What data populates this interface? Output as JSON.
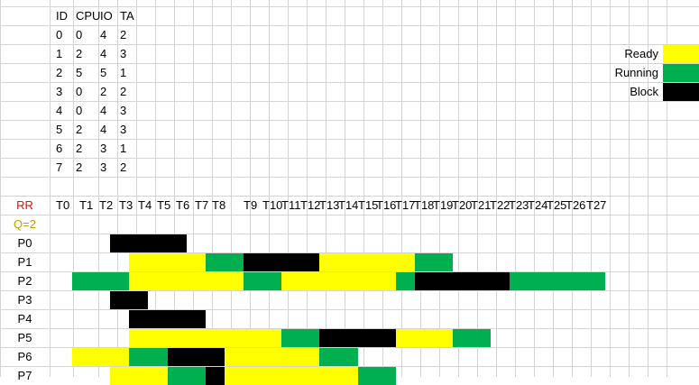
{
  "colors": {
    "ready": "#FFFF00",
    "running": "#00B050",
    "block": "#000000",
    "grid": "#D4D4D4",
    "rr_label": "#FF0000",
    "quantum_label": "#C0A000"
  },
  "process_table": {
    "headers": [
      "ID",
      "CPU",
      "IO",
      "TA"
    ],
    "rows": [
      [
        "0",
        "0",
        "4",
        "2"
      ],
      [
        "1",
        "2",
        "4",
        "3"
      ],
      [
        "2",
        "5",
        "5",
        "1"
      ],
      [
        "3",
        "0",
        "2",
        "2"
      ],
      [
        "4",
        "0",
        "4",
        "3"
      ],
      [
        "5",
        "2",
        "4",
        "3"
      ],
      [
        "6",
        "2",
        "3",
        "1"
      ],
      [
        "7",
        "2",
        "3",
        "2"
      ]
    ]
  },
  "legend": [
    {
      "label": "Ready",
      "state": "ready"
    },
    {
      "label": "Running",
      "state": "running"
    },
    {
      "label": "Block",
      "state": "block"
    }
  ],
  "gantt": {
    "algorithm_label": "RR",
    "quantum_label": "Q=2",
    "time_labels": [
      "T0",
      "T1",
      "T2",
      "T3",
      "T4",
      "T5",
      "T6",
      "T7",
      "T8",
      "T9",
      "T10",
      "T11",
      "T12",
      "T13",
      "T14",
      "T15",
      "T16",
      "T17",
      "T18",
      "T19",
      "T20",
      "T21",
      "T22",
      "T23",
      "T24",
      "T25",
      "T26",
      "T27"
    ],
    "processes": [
      {
        "label": "P0",
        "segments": [
          {
            "state": "block",
            "start": 2,
            "end": 6
          }
        ]
      },
      {
        "label": "P1",
        "segments": [
          {
            "state": "ready",
            "start": 3,
            "end": 7
          },
          {
            "state": "running",
            "start": 7,
            "end": 9
          },
          {
            "state": "block",
            "start": 9,
            "end": 13
          },
          {
            "state": "ready",
            "start": 13,
            "end": 18
          },
          {
            "state": "running",
            "start": 18,
            "end": 20
          }
        ]
      },
      {
        "label": "P2",
        "segments": [
          {
            "state": "running",
            "start": 0,
            "end": 3
          },
          {
            "state": "ready",
            "start": 3,
            "end": 9
          },
          {
            "state": "running",
            "start": 9,
            "end": 11
          },
          {
            "state": "ready",
            "start": 11,
            "end": 17
          },
          {
            "state": "running",
            "start": 17,
            "end": 18
          },
          {
            "state": "block",
            "start": 18,
            "end": 23
          },
          {
            "state": "running",
            "start": 23,
            "end": 28
          }
        ]
      },
      {
        "label": "P3",
        "segments": [
          {
            "state": "block",
            "start": 2,
            "end": 4
          }
        ]
      },
      {
        "label": "P4",
        "segments": [
          {
            "state": "block",
            "start": 3,
            "end": 7
          }
        ]
      },
      {
        "label": "P5",
        "segments": [
          {
            "state": "ready",
            "start": 3,
            "end": 11
          },
          {
            "state": "running",
            "start": 11,
            "end": 13
          },
          {
            "state": "block",
            "start": 13,
            "end": 17
          },
          {
            "state": "ready",
            "start": 17,
            "end": 20
          },
          {
            "state": "running",
            "start": 20,
            "end": 22
          }
        ]
      },
      {
        "label": "P6",
        "segments": [
          {
            "state": "ready",
            "start": 0,
            "end": 3
          },
          {
            "state": "running",
            "start": 3,
            "end": 5
          },
          {
            "state": "block",
            "start": 5,
            "end": 8
          },
          {
            "state": "ready",
            "start": 8,
            "end": 13
          },
          {
            "state": "running",
            "start": 13,
            "end": 15
          }
        ]
      },
      {
        "label": "P7",
        "segments": [
          {
            "state": "ready",
            "start": 2,
            "end": 5
          },
          {
            "state": "running",
            "start": 5,
            "end": 7
          },
          {
            "state": "block",
            "start": 7,
            "end": 8
          },
          {
            "state": "ready",
            "start": 8,
            "end": 15
          },
          {
            "state": "running",
            "start": 15,
            "end": 17
          }
        ]
      }
    ]
  }
}
